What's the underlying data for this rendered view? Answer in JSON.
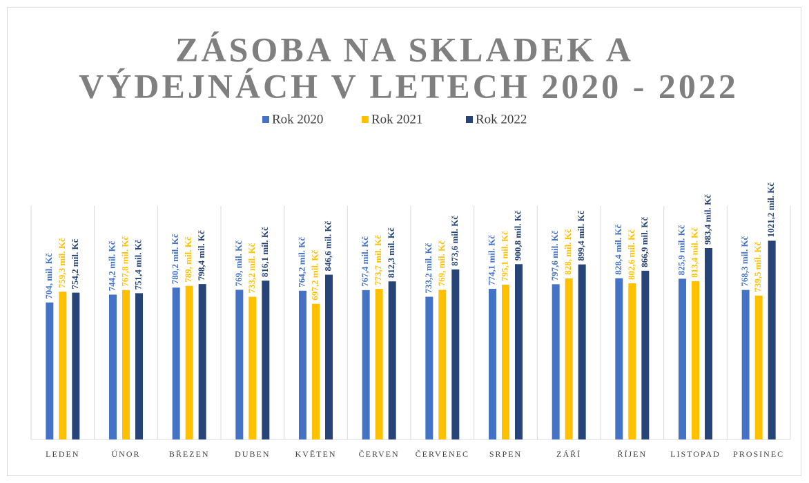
{
  "chart_data": {
    "type": "bar",
    "title": [
      "ZÁSOBA NA SKLADEK A",
      "VÝDEJNÁCH V LETECH 2020 - 2022"
    ],
    "categories": [
      "LEDEN",
      "ÚNOR",
      "BŘEZEN",
      "DUBEN",
      "KVĚTEN",
      "ČERVEN",
      "ČERVENEC",
      "SRPEN",
      "ZÁŘÍ",
      "ŘÍJEN",
      "LISTOPAD",
      "PROSINEC"
    ],
    "ylim": [
      0,
      1200
    ],
    "series": [
      {
        "name": "Rok 2020",
        "color": "#4472c4",
        "values": [
          704,
          744.2,
          780.2,
          769,
          764.2,
          767.4,
          733.2,
          774.1,
          797.6,
          828.4,
          825.9,
          768.3
        ],
        "value_labels": [
          "704, mil. Kč",
          "744,2 mil. Kč",
          "780,2 mil. Kč",
          "769, mil. Kč",
          "764,2 mil. Kč",
          "767,4 mil. Kč",
          "733,2 mil. Kč",
          "774,1 mil. Kč",
          "797,6 mil. Kč",
          "828,4 mil. Kč",
          "825,9 mil. Kč",
          "768,3 mil. Kč"
        ]
      },
      {
        "name": "Rok 2021",
        "color": "#ffc000",
        "values": [
          759.3,
          767.8,
          789,
          733.2,
          697.2,
          773.7,
          769,
          795.1,
          828,
          802.6,
          813.4,
          739.5
        ],
        "value_labels": [
          "759,3 mil. Kč",
          "767,8 mil. Kč",
          "789, mil. Kč",
          "733,2 mil. Kč",
          "697,2 mil. Kč",
          "773,7 mil. Kč",
          "769, mil. Kč",
          "795,1 mil. Kč",
          "828, mil. Kč",
          "802,6 mil. Kč",
          "813,4 mil. Kč",
          "739,5 mil. Kč"
        ]
      },
      {
        "name": "Rok 2022",
        "color": "#264478",
        "values": [
          754.2,
          751.4,
          798.4,
          816.1,
          846.6,
          812.3,
          873.6,
          900.8,
          899.4,
          866.9,
          983.4,
          1021.2
        ],
        "value_labels": [
          "754,2 mil. Kč",
          "751,4 mil. Kč",
          "798,4 mil. Kč",
          "816,1 mil. Kč",
          "846,6 mil. Kč",
          "812,3 mil. Kč",
          "873,6 mil. Kč",
          "900,8 mil. Kč",
          "899,4 mil. Kč",
          "866,9 mil. Kč",
          "983,4 mil. Kč",
          "1021,2 mil. Kč"
        ]
      }
    ]
  }
}
